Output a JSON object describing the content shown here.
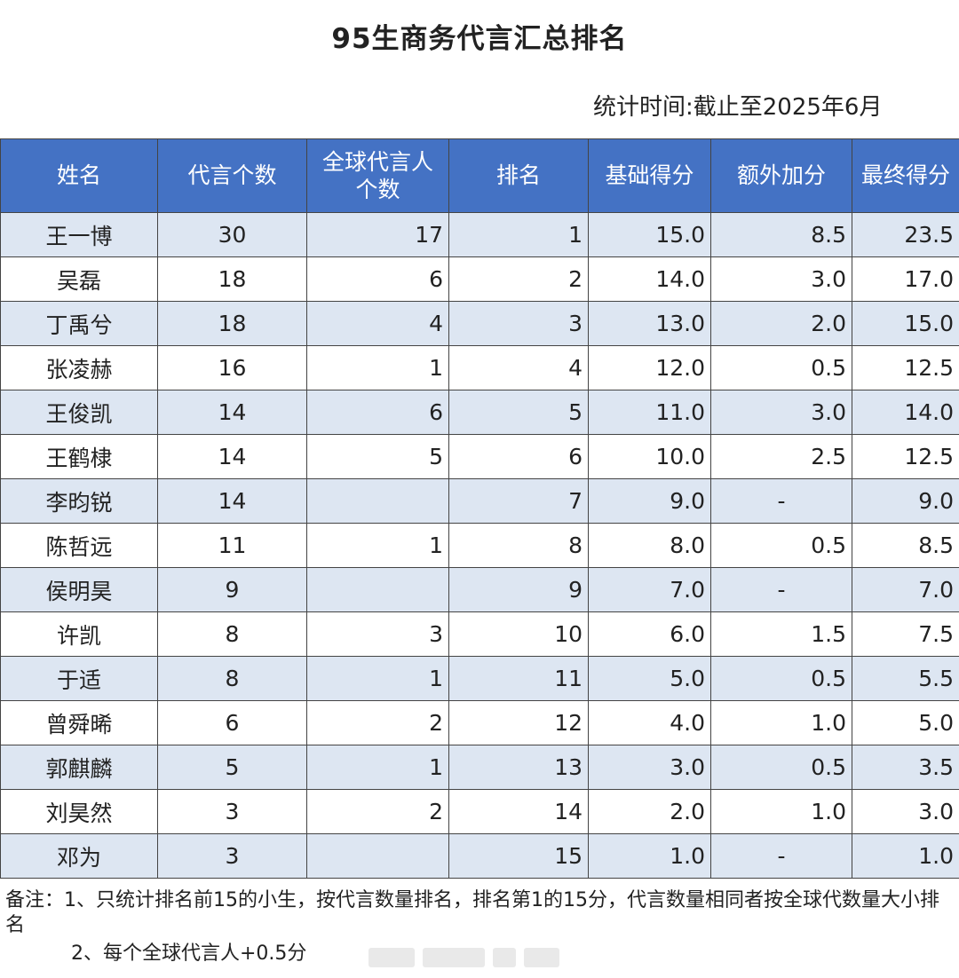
{
  "title": "95生商务代言汇总排名",
  "stat_time": "统计时间:截止至2025年6月",
  "table": {
    "headers": [
      "姓名",
      "代言个数",
      "全球代言人个数",
      "排名",
      "基础得分",
      "额外加分",
      "最终得分"
    ],
    "rows": [
      [
        "王一博",
        "30",
        "17",
        "1",
        "15.0",
        "8.5",
        "23.5"
      ],
      [
        "吴磊",
        "18",
        "6",
        "2",
        "14.0",
        "3.0",
        "17.0"
      ],
      [
        "丁禹兮",
        "18",
        "4",
        "3",
        "13.0",
        "2.0",
        "15.0"
      ],
      [
        "张凌赫",
        "16",
        "1",
        "4",
        "12.0",
        "0.5",
        "12.5"
      ],
      [
        "王俊凯",
        "14",
        "6",
        "5",
        "11.0",
        "3.0",
        "14.0"
      ],
      [
        "王鹤棣",
        "14",
        "5",
        "6",
        "10.0",
        "2.5",
        "12.5"
      ],
      [
        "李昀锐",
        "14",
        "",
        "7",
        "9.0",
        "-",
        "9.0"
      ],
      [
        "陈哲远",
        "11",
        "1",
        "8",
        "8.0",
        "0.5",
        "8.5"
      ],
      [
        "侯明昊",
        "9",
        "",
        "9",
        "7.0",
        "-",
        "7.0"
      ],
      [
        "许凯",
        "8",
        "3",
        "10",
        "6.0",
        "1.5",
        "7.5"
      ],
      [
        "于适",
        "8",
        "1",
        "11",
        "5.0",
        "0.5",
        "5.5"
      ],
      [
        "曾舜晞",
        "6",
        "2",
        "12",
        "4.0",
        "1.0",
        "5.0"
      ],
      [
        "郭麒麟",
        "5",
        "1",
        "13",
        "3.0",
        "0.5",
        "3.5"
      ],
      [
        "刘昊然",
        "3",
        "2",
        "14",
        "2.0",
        "1.0",
        "3.0"
      ],
      [
        "邓为",
        "3",
        "",
        "15",
        "1.0",
        "-",
        "1.0"
      ]
    ]
  },
  "note": {
    "line1": "备注：1、只统计排名前15的小生，按代言数量排名，排名第1的15分，代言数量相同者按全球代数量大小排名",
    "line2": "2、每个全球代言人+0.5分"
  },
  "colors": {
    "header_bg": "#4472c4",
    "row_alt_bg": "#dde6f2"
  }
}
